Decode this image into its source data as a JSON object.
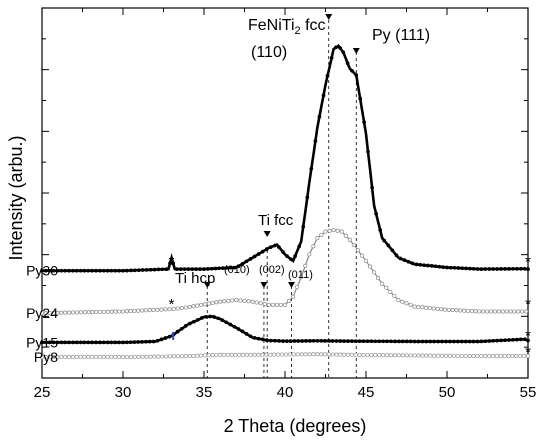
{
  "chart_data": {
    "type": "line",
    "xlabel": "2 Theta (degrees)",
    "ylabel": "Intensity (arbu.)",
    "xlim": [
      25,
      55
    ],
    "ylim": [
      0,
      100
    ],
    "x_ticks": [
      25,
      30,
      35,
      40,
      45,
      50,
      55
    ],
    "y_ticks_labeled": false,
    "series": [
      {
        "name": "Py30",
        "style": "black filled markers",
        "color": "#000000",
        "points": [
          [
            25,
            28
          ],
          [
            30,
            28
          ],
          [
            32.8,
            28.5
          ],
          [
            33.0,
            32
          ],
          [
            33.2,
            28.5
          ],
          [
            35,
            28.5
          ],
          [
            37,
            29
          ],
          [
            38,
            32
          ],
          [
            39,
            35
          ],
          [
            39.5,
            36
          ],
          [
            40,
            33
          ],
          [
            40.5,
            31
          ],
          [
            41,
            37
          ],
          [
            41.5,
            55
          ],
          [
            42,
            72
          ],
          [
            42.5,
            85
          ],
          [
            43,
            96
          ],
          [
            43.3,
            97
          ],
          [
            43.6,
            95
          ],
          [
            44,
            90
          ],
          [
            44.4,
            88
          ],
          [
            45,
            70
          ],
          [
            45.5,
            48
          ],
          [
            46,
            38
          ],
          [
            47,
            32
          ],
          [
            48,
            30
          ],
          [
            50,
            29
          ],
          [
            52,
            28.5
          ],
          [
            54.8,
            28.6
          ],
          [
            55,
            28.5
          ]
        ]
      },
      {
        "name": "Py24",
        "style": "grey open markers",
        "color": "#8a8a8a",
        "points": [
          [
            25,
            15
          ],
          [
            28,
            15.3
          ],
          [
            30,
            15.5
          ],
          [
            32,
            16
          ],
          [
            33,
            16.2
          ],
          [
            34,
            16.8
          ],
          [
            36,
            18.5
          ],
          [
            37,
            19
          ],
          [
            38,
            18.5
          ],
          [
            39,
            17.5
          ],
          [
            40,
            17.5
          ],
          [
            40.5,
            20
          ],
          [
            41,
            26
          ],
          [
            41.5,
            33
          ],
          [
            42,
            38
          ],
          [
            42.5,
            40
          ],
          [
            43,
            40.5
          ],
          [
            43.5,
            40
          ],
          [
            44,
            37.5
          ],
          [
            45,
            31
          ],
          [
            46,
            24
          ],
          [
            47,
            19
          ],
          [
            48,
            17
          ],
          [
            50,
            16
          ],
          [
            52,
            15.5
          ],
          [
            55,
            15.5
          ]
        ]
      },
      {
        "name": "Py15",
        "style": "black filled markers",
        "color": "#000000",
        "points": [
          [
            25,
            6
          ],
          [
            30,
            6
          ],
          [
            32,
            6.3
          ],
          [
            33,
            8
          ],
          [
            34,
            11.5
          ],
          [
            35,
            13.8
          ],
          [
            35.5,
            14
          ],
          [
            36,
            13.2
          ],
          [
            37,
            10.5
          ],
          [
            38,
            7.5
          ],
          [
            39,
            6.6
          ],
          [
            40,
            6.4
          ],
          [
            42,
            6.5
          ],
          [
            44,
            6.4
          ],
          [
            48,
            6.3
          ],
          [
            52,
            6.3
          ],
          [
            54.8,
            7
          ],
          [
            55,
            6.6
          ]
        ]
      },
      {
        "name": "Py8",
        "style": "grey open markers",
        "color": "#9a9a9a",
        "points": [
          [
            25,
            1.5
          ],
          [
            30,
            1.5
          ],
          [
            34,
            1.8
          ],
          [
            36,
            2.2
          ],
          [
            38,
            2.2
          ],
          [
            42,
            2.4
          ],
          [
            44,
            2.2
          ],
          [
            48,
            2
          ],
          [
            52,
            1.8
          ],
          [
            55,
            1.8
          ]
        ]
      }
    ],
    "peak_labels": [
      {
        "lines": [
          "FeNiTi",
          "2",
          " fcc"
        ],
        "sub_index": 1,
        "sub_text": "(110)",
        "marker_x": 42.7
      },
      {
        "text": "Py (111)",
        "marker_x": 44.4
      },
      {
        "text": "Ti fcc",
        "marker_x": 39.5
      },
      {
        "text": "Ti hcp",
        "marker_x": 35.2
      },
      {
        "text": "(010)",
        "marker_x": 35.2
      },
      {
        "text": "(002)",
        "marker_x": 38.7
      },
      {
        "text": "(011)",
        "marker_x": 40.4
      }
    ],
    "reference_lines_x": [
      35.2,
      38.7,
      38.9,
      40.4,
      42.7,
      44.4
    ],
    "star_markers": [
      {
        "x": 33.0,
        "series": "Py30"
      },
      {
        "x": 33.0,
        "series": "Py24"
      },
      {
        "x": 55.0,
        "series": "Py30"
      },
      {
        "x": 55.0,
        "series": "Py24"
      },
      {
        "x": 55.0,
        "series": "Py15"
      },
      {
        "x": 55.0,
        "series": "Py8"
      }
    ],
    "grid": false,
    "legend": "inline labels at left"
  },
  "texts": {
    "fenitl_main": "FeNiTi",
    "fenitl_sub": "2",
    "fenitl_rest": " fcc",
    "fenitl_110": "(110)",
    "py111": "Py (111)",
    "ti_fcc": "Ti fcc",
    "ti_hcp": "Ti hcp",
    "idx_010": "(010)",
    "idx_002": "(002)",
    "idx_011": "(011)",
    "star": "*"
  }
}
